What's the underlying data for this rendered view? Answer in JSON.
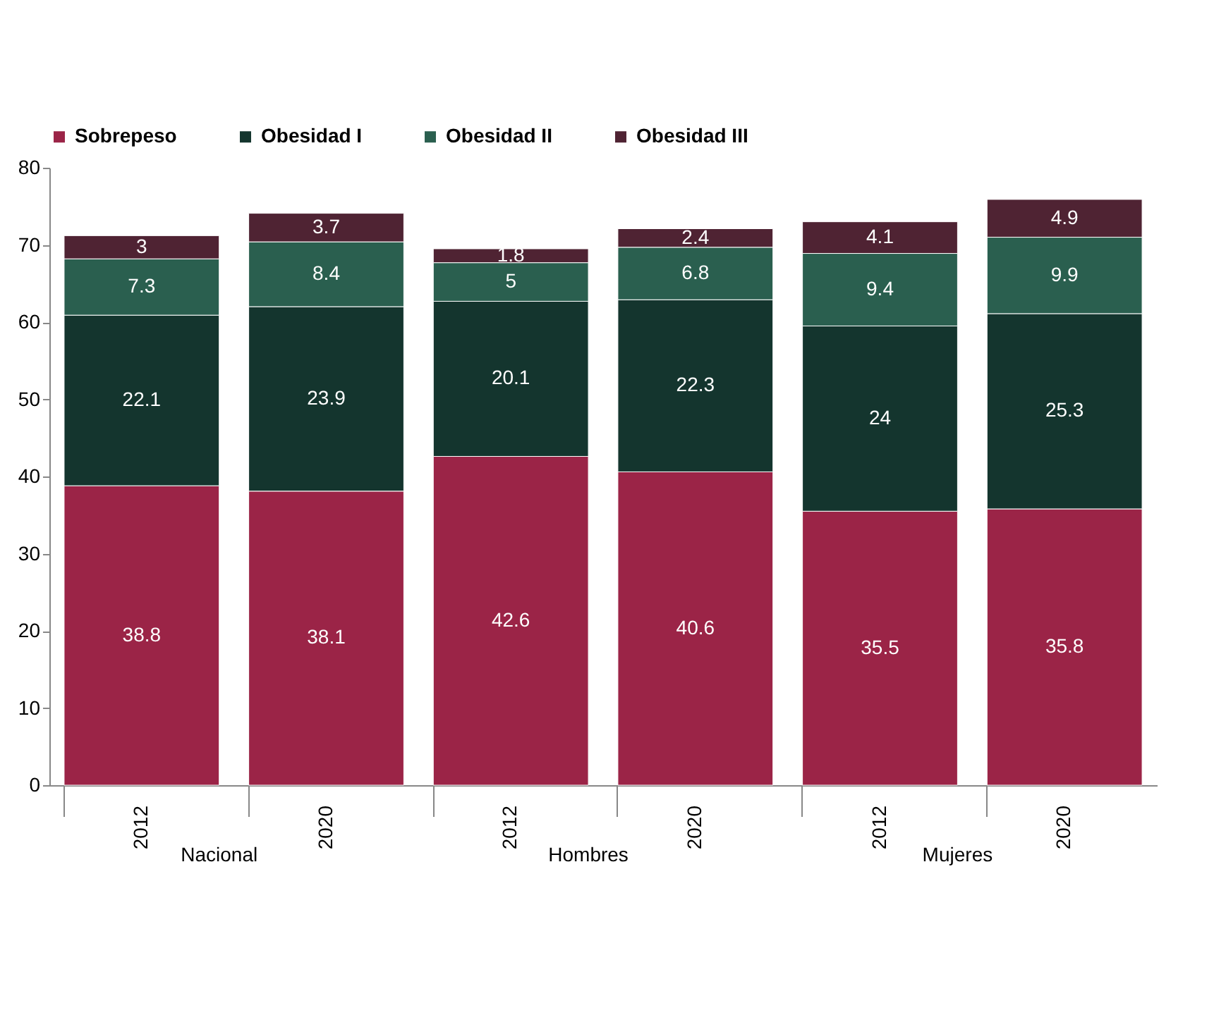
{
  "chart_data": {
    "type": "bar",
    "stacked": true,
    "categories": [
      "2012",
      "2020",
      "2012",
      "2020",
      "2012",
      "2020"
    ],
    "series": [
      {
        "name": "Sobrepeso",
        "color": "#9b2447",
        "values": [
          38.8,
          38.1,
          42.6,
          40.6,
          35.5,
          35.8
        ]
      },
      {
        "name": "Obesidad I",
        "color": "#14352e",
        "values": [
          22.1,
          23.9,
          20.1,
          22.3,
          24,
          25.3
        ]
      },
      {
        "name": "Obesidad II",
        "color": "#2a5f4f",
        "values": [
          7.3,
          8.4,
          5,
          6.8,
          9.4,
          9.9
        ]
      },
      {
        "name": "Obesidad III",
        "color": "#4f2333",
        "values": [
          3,
          3.7,
          1.8,
          2.4,
          4.1,
          4.9
        ]
      }
    ],
    "annotations": [
      "Nacional",
      "Hombres",
      "Mujeres"
    ],
    "ylim": [
      0,
      80
    ],
    "yticks": [
      0,
      10,
      20,
      30,
      40,
      50,
      60,
      70,
      80
    ],
    "data_labels": true,
    "legend": "top",
    "grid": false
  }
}
